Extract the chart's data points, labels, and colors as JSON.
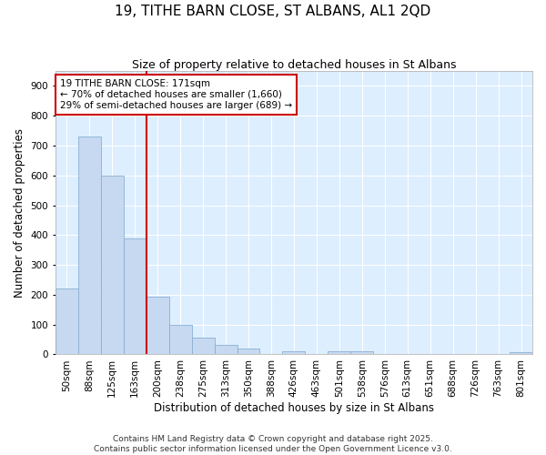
{
  "title": "19, TITHE BARN CLOSE, ST ALBANS, AL1 2QD",
  "subtitle": "Size of property relative to detached houses in St Albans",
  "xlabel": "Distribution of detached houses by size in St Albans",
  "ylabel": "Number of detached properties",
  "categories": [
    "50sqm",
    "88sqm",
    "125sqm",
    "163sqm",
    "200sqm",
    "238sqm",
    "275sqm",
    "313sqm",
    "350sqm",
    "388sqm",
    "426sqm",
    "463sqm",
    "501sqm",
    "538sqm",
    "576sqm",
    "613sqm",
    "651sqm",
    "688sqm",
    "726sqm",
    "763sqm",
    "801sqm"
  ],
  "values": [
    220,
    730,
    600,
    390,
    193,
    100,
    57,
    32,
    20,
    0,
    10,
    0,
    12,
    12,
    0,
    0,
    0,
    0,
    0,
    0,
    8
  ],
  "bar_color": "#c6d9f0",
  "bar_edge_color": "#8ab0d4",
  "vline_color": "#cc0000",
  "annotation_text": "19 TITHE BARN CLOSE: 171sqm\n← 70% of detached houses are smaller (1,660)\n29% of semi-detached houses are larger (689) →",
  "annotation_box_color": "white",
  "annotation_box_edge_color": "#cc0000",
  "ylim": [
    0,
    950
  ],
  "yticks": [
    0,
    100,
    200,
    300,
    400,
    500,
    600,
    700,
    800,
    900
  ],
  "background_color": "#ddeeff",
  "grid_color": "#ffffff",
  "footer_text": "Contains HM Land Registry data © Crown copyright and database right 2025.\nContains public sector information licensed under the Open Government Licence v3.0.",
  "title_fontsize": 11,
  "subtitle_fontsize": 9,
  "axis_label_fontsize": 8.5,
  "tick_fontsize": 7.5,
  "annotation_fontsize": 7.5,
  "footer_fontsize": 6.5
}
